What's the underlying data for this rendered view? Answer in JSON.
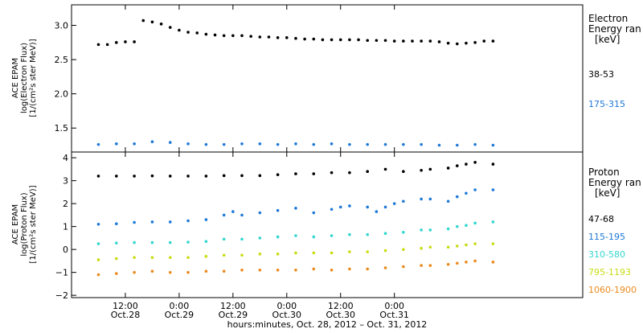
{
  "chart_data": [
    {
      "type": "scatter",
      "panel": "electron",
      "ylabel_lines": [
        "ACE EPAM",
        "log(Electron Flux)",
        "[1/(cm²s ster MeV)]"
      ],
      "ylim": [
        1.15,
        3.3
      ],
      "yticks": [
        {
          "value": 1.5,
          "label": "1.5"
        },
        {
          "value": 2.0,
          "label": "2.0"
        },
        {
          "value": 2.5,
          "label": "2.5"
        },
        {
          "value": 3.0,
          "label": "3.0"
        }
      ],
      "legend_title_lines": [
        "Electron",
        "Energy ran",
        "[keV]"
      ],
      "series": [
        {
          "name": "38-53",
          "color": "#000000",
          "x": [
            0,
            2,
            4,
            6,
            8,
            10,
            12,
            14,
            16,
            18,
            20,
            22,
            24,
            26,
            28,
            30,
            32,
            34,
            36,
            38,
            40,
            42,
            44,
            46,
            48,
            50,
            52,
            54,
            56,
            58,
            60,
            62,
            64,
            66,
            68,
            70,
            72,
            74,
            76,
            78,
            80,
            82,
            84,
            86,
            88
          ],
          "y": [
            2.72,
            2.72,
            2.75,
            2.76,
            2.76,
            3.07,
            3.05,
            3.02,
            2.97,
            2.93,
            2.9,
            2.89,
            2.87,
            2.86,
            2.85,
            2.85,
            2.85,
            2.84,
            2.83,
            2.83,
            2.82,
            2.82,
            2.81,
            2.8,
            2.8,
            2.79,
            2.79,
            2.79,
            2.79,
            2.79,
            2.78,
            2.78,
            2.78,
            2.77,
            2.77,
            2.77,
            2.77,
            2.77,
            2.76,
            2.74,
            2.73,
            2.74,
            2.75,
            2.77,
            2.77
          ]
        },
        {
          "name": "175-315",
          "color": "#1e78d7",
          "x": [
            0,
            4,
            8,
            12,
            16,
            20,
            24,
            28,
            32,
            36,
            40,
            44,
            48,
            52,
            56,
            60,
            64,
            68,
            72,
            76,
            80,
            84,
            88
          ],
          "y": [
            1.26,
            1.27,
            1.27,
            1.3,
            1.29,
            1.27,
            1.26,
            1.26,
            1.27,
            1.27,
            1.26,
            1.27,
            1.26,
            1.27,
            1.26,
            1.26,
            1.26,
            1.26,
            1.26,
            1.25,
            1.25,
            1.26,
            1.25
          ]
        }
      ]
    },
    {
      "type": "scatter",
      "panel": "proton",
      "ylabel_lines": [
        "ACE EPAM",
        "log(Proton Flux)",
        "[1/(cm²s ster MeV)]"
      ],
      "ylim": [
        -2.1,
        4.25
      ],
      "yticks": [
        {
          "value": -2,
          "label": "−2"
        },
        {
          "value": -1,
          "label": "−1"
        },
        {
          "value": 0,
          "label": "0"
        },
        {
          "value": 1,
          "label": "1"
        },
        {
          "value": 2,
          "label": "2"
        },
        {
          "value": 3,
          "label": "3"
        },
        {
          "value": 4,
          "label": "4"
        }
      ],
      "legend_title_lines": [
        "Proton",
        "Energy ran",
        "[keV]"
      ],
      "series": [
        {
          "name": "47-68",
          "color": "#000000",
          "x": [
            0,
            4,
            8,
            12,
            16,
            20,
            24,
            28,
            32,
            36,
            40,
            44,
            48,
            52,
            56,
            60,
            64,
            68,
            72,
            74,
            78,
            80,
            82,
            84,
            88
          ],
          "y": [
            3.2,
            3.2,
            3.2,
            3.21,
            3.2,
            3.2,
            3.2,
            3.22,
            3.22,
            3.22,
            3.26,
            3.3,
            3.3,
            3.35,
            3.35,
            3.4,
            3.5,
            3.4,
            3.45,
            3.5,
            3.55,
            3.65,
            3.72,
            3.8,
            3.72
          ]
        },
        {
          "name": "115-195",
          "color": "#1e78d7",
          "x": [
            0,
            4,
            8,
            12,
            16,
            20,
            24,
            28,
            30,
            32,
            36,
            40,
            44,
            48,
            52,
            54,
            56,
            60,
            62,
            64,
            66,
            68,
            72,
            74,
            78,
            80,
            82,
            84,
            88
          ],
          "y": [
            1.1,
            1.12,
            1.18,
            1.2,
            1.2,
            1.25,
            1.3,
            1.5,
            1.65,
            1.5,
            1.6,
            1.7,
            1.8,
            1.6,
            1.75,
            1.85,
            1.9,
            1.85,
            1.65,
            1.85,
            2.0,
            2.1,
            2.2,
            2.2,
            2.1,
            2.3,
            2.45,
            2.6,
            2.6
          ]
        },
        {
          "name": "310-580",
          "color": "#33d6cf",
          "x": [
            0,
            4,
            8,
            12,
            16,
            20,
            24,
            28,
            32,
            36,
            40,
            44,
            48,
            52,
            56,
            60,
            64,
            68,
            72,
            74,
            78,
            80,
            82,
            84,
            88
          ],
          "y": [
            0.25,
            0.28,
            0.3,
            0.3,
            0.3,
            0.32,
            0.35,
            0.45,
            0.45,
            0.5,
            0.55,
            0.6,
            0.55,
            0.6,
            0.65,
            0.65,
            0.7,
            0.75,
            0.85,
            0.85,
            0.9,
            1.0,
            1.05,
            1.15,
            1.2
          ]
        },
        {
          "name": "795-1193",
          "color": "#c8dc14",
          "x": [
            0,
            4,
            8,
            12,
            16,
            20,
            24,
            28,
            32,
            36,
            40,
            44,
            48,
            52,
            56,
            60,
            64,
            68,
            72,
            74,
            78,
            80,
            82,
            84,
            88
          ],
          "y": [
            -0.45,
            -0.4,
            -0.35,
            -0.35,
            -0.35,
            -0.35,
            -0.3,
            -0.25,
            -0.25,
            -0.2,
            -0.2,
            -0.15,
            -0.15,
            -0.15,
            -0.1,
            -0.1,
            -0.05,
            0.0,
            0.05,
            0.1,
            0.1,
            0.15,
            0.2,
            0.25,
            0.25
          ]
        },
        {
          "name": "1060-1900",
          "color": "#ea8a1e",
          "x": [
            0,
            4,
            8,
            12,
            16,
            20,
            24,
            28,
            32,
            36,
            40,
            44,
            48,
            52,
            56,
            60,
            64,
            68,
            72,
            74,
            78,
            80,
            82,
            84,
            88
          ],
          "y": [
            -1.1,
            -1.05,
            -1.0,
            -0.95,
            -1.0,
            -1.0,
            -0.95,
            -0.95,
            -0.9,
            -0.9,
            -0.9,
            -0.9,
            -0.85,
            -0.9,
            -0.85,
            -0.85,
            -0.8,
            -0.75,
            -0.7,
            -0.7,
            -0.65,
            -0.6,
            -0.55,
            -0.5,
            -0.55
          ]
        }
      ]
    }
  ],
  "x_axis": {
    "xlim": [
      -6,
      108
    ],
    "ticks": [
      {
        "x": 6,
        "time": "12:00",
        "date": "Oct.28"
      },
      {
        "x": 18,
        "time": "0:00",
        "date": "Oct.29"
      },
      {
        "x": 30,
        "time": "12:00",
        "date": "Oct.29"
      },
      {
        "x": 42,
        "time": "0:00",
        "date": "Oct.30"
      },
      {
        "x": 54,
        "time": "12:00",
        "date": "Oct.30"
      },
      {
        "x": 66,
        "time": "0:00",
        "date": "Oct.31"
      }
    ],
    "label": "hours:minutes, Oct. 28, 2012 – Oct. 31, 2012"
  }
}
